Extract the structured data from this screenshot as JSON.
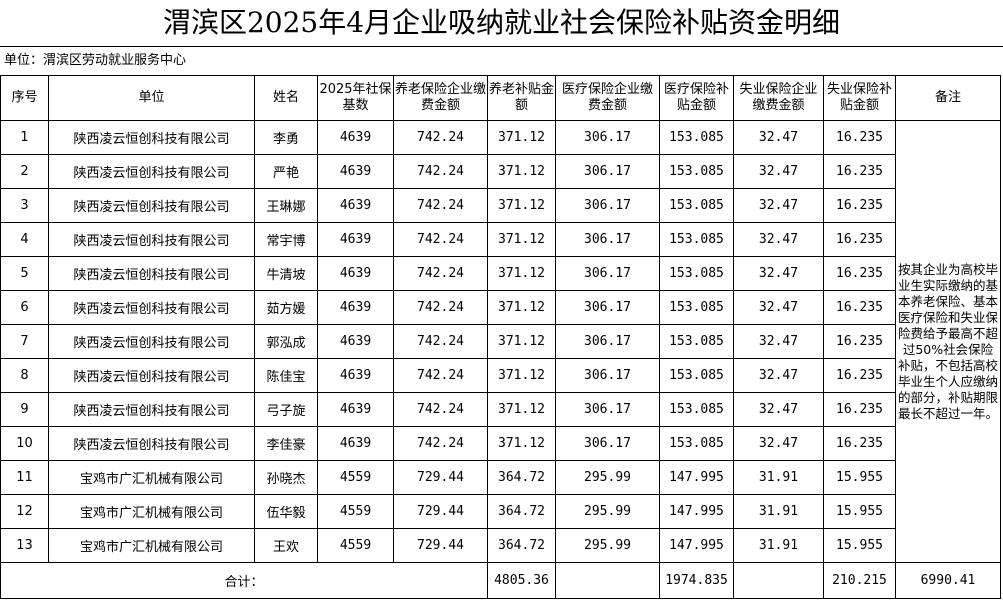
{
  "title": "渭滨区2025年4月企业吸纳就业社会保险补贴资金明细",
  "unit_label": "单位：渭滨区劳动就业服务中心",
  "headers": [
    "序号",
    "单位",
    "姓名",
    "2025年社保基数",
    "养老保险企业缴费金额",
    "养老补贴金额",
    "医疗保险企业缴费金额",
    "医疗保险补贴金额",
    "失业保险企业缴费金额",
    "失业保险补贴金额",
    "备注"
  ],
  "rows": [
    [
      "1",
      "陕西凌云恒创科技有限公司",
      "李勇",
      "4639",
      "742.24",
      "371.12",
      "306.17",
      "153.085",
      "32.47",
      "16.235"
    ],
    [
      "2",
      "陕西凌云恒创科技有限公司",
      "严艳",
      "4639",
      "742.24",
      "371.12",
      "306.17",
      "153.085",
      "32.47",
      "16.235"
    ],
    [
      "3",
      "陕西凌云恒创科技有限公司",
      "王琳娜",
      "4639",
      "742.24",
      "371.12",
      "306.17",
      "153.085",
      "32.47",
      "16.235"
    ],
    [
      "4",
      "陕西凌云恒创科技有限公司",
      "常宇博",
      "4639",
      "742.24",
      "371.12",
      "306.17",
      "153.085",
      "32.47",
      "16.235"
    ],
    [
      "5",
      "陕西凌云恒创科技有限公司",
      "牛清坡",
      "4639",
      "742.24",
      "371.12",
      "306.17",
      "153.085",
      "32.47",
      "16.235"
    ],
    [
      "6",
      "陕西凌云恒创科技有限公司",
      "茹方媛",
      "4639",
      "742.24",
      "371.12",
      "306.17",
      "153.085",
      "32.47",
      "16.235"
    ],
    [
      "7",
      "陕西凌云恒创科技有限公司",
      "郭泓成",
      "4639",
      "742.24",
      "371.12",
      "306.17",
      "153.085",
      "32.47",
      "16.235"
    ],
    [
      "8",
      "陕西凌云恒创科技有限公司",
      "陈佳宝",
      "4639",
      "742.24",
      "371.12",
      "306.17",
      "153.085",
      "32.47",
      "16.235"
    ],
    [
      "9",
      "陕西凌云恒创科技有限公司",
      "弓子旋",
      "4639",
      "742.24",
      "371.12",
      "306.17",
      "153.085",
      "32.47",
      "16.235"
    ],
    [
      "10",
      "陕西凌云恒创科技有限公司",
      "李佳豪",
      "4639",
      "742.24",
      "371.12",
      "306.17",
      "153.085",
      "32.47",
      "16.235"
    ],
    [
      "11",
      "宝鸡市广汇机械有限公司",
      "孙晓杰",
      "4559",
      "729.44",
      "364.72",
      "295.99",
      "147.995",
      "31.91",
      "15.955"
    ],
    [
      "12",
      "宝鸡市广汇机械有限公司",
      "伍华毅",
      "4559",
      "729.44",
      "364.72",
      "295.99",
      "147.995",
      "31.91",
      "15.955"
    ],
    [
      "13",
      "宝鸡市广汇机械有限公司",
      "王欢",
      "4559",
      "729.44",
      "364.72",
      "295.99",
      "147.995",
      "31.91",
      "15.955"
    ]
  ],
  "remark": "按其企业为高校毕业生实际缴纳的基本养老保险、基本医疗保险和失业保险费给予最高不超过50%社会保险补贴，不包括高校毕业生个人应缴纳的部分，补贴期限最长不超过一年。",
  "footer": {
    "label": "合计：",
    "pension_subsidy_total": "4805.36",
    "medical_subsidy_total": "1974.835",
    "unemployment_subsidy_total": "210.215",
    "grand_total": "6990.41"
  }
}
